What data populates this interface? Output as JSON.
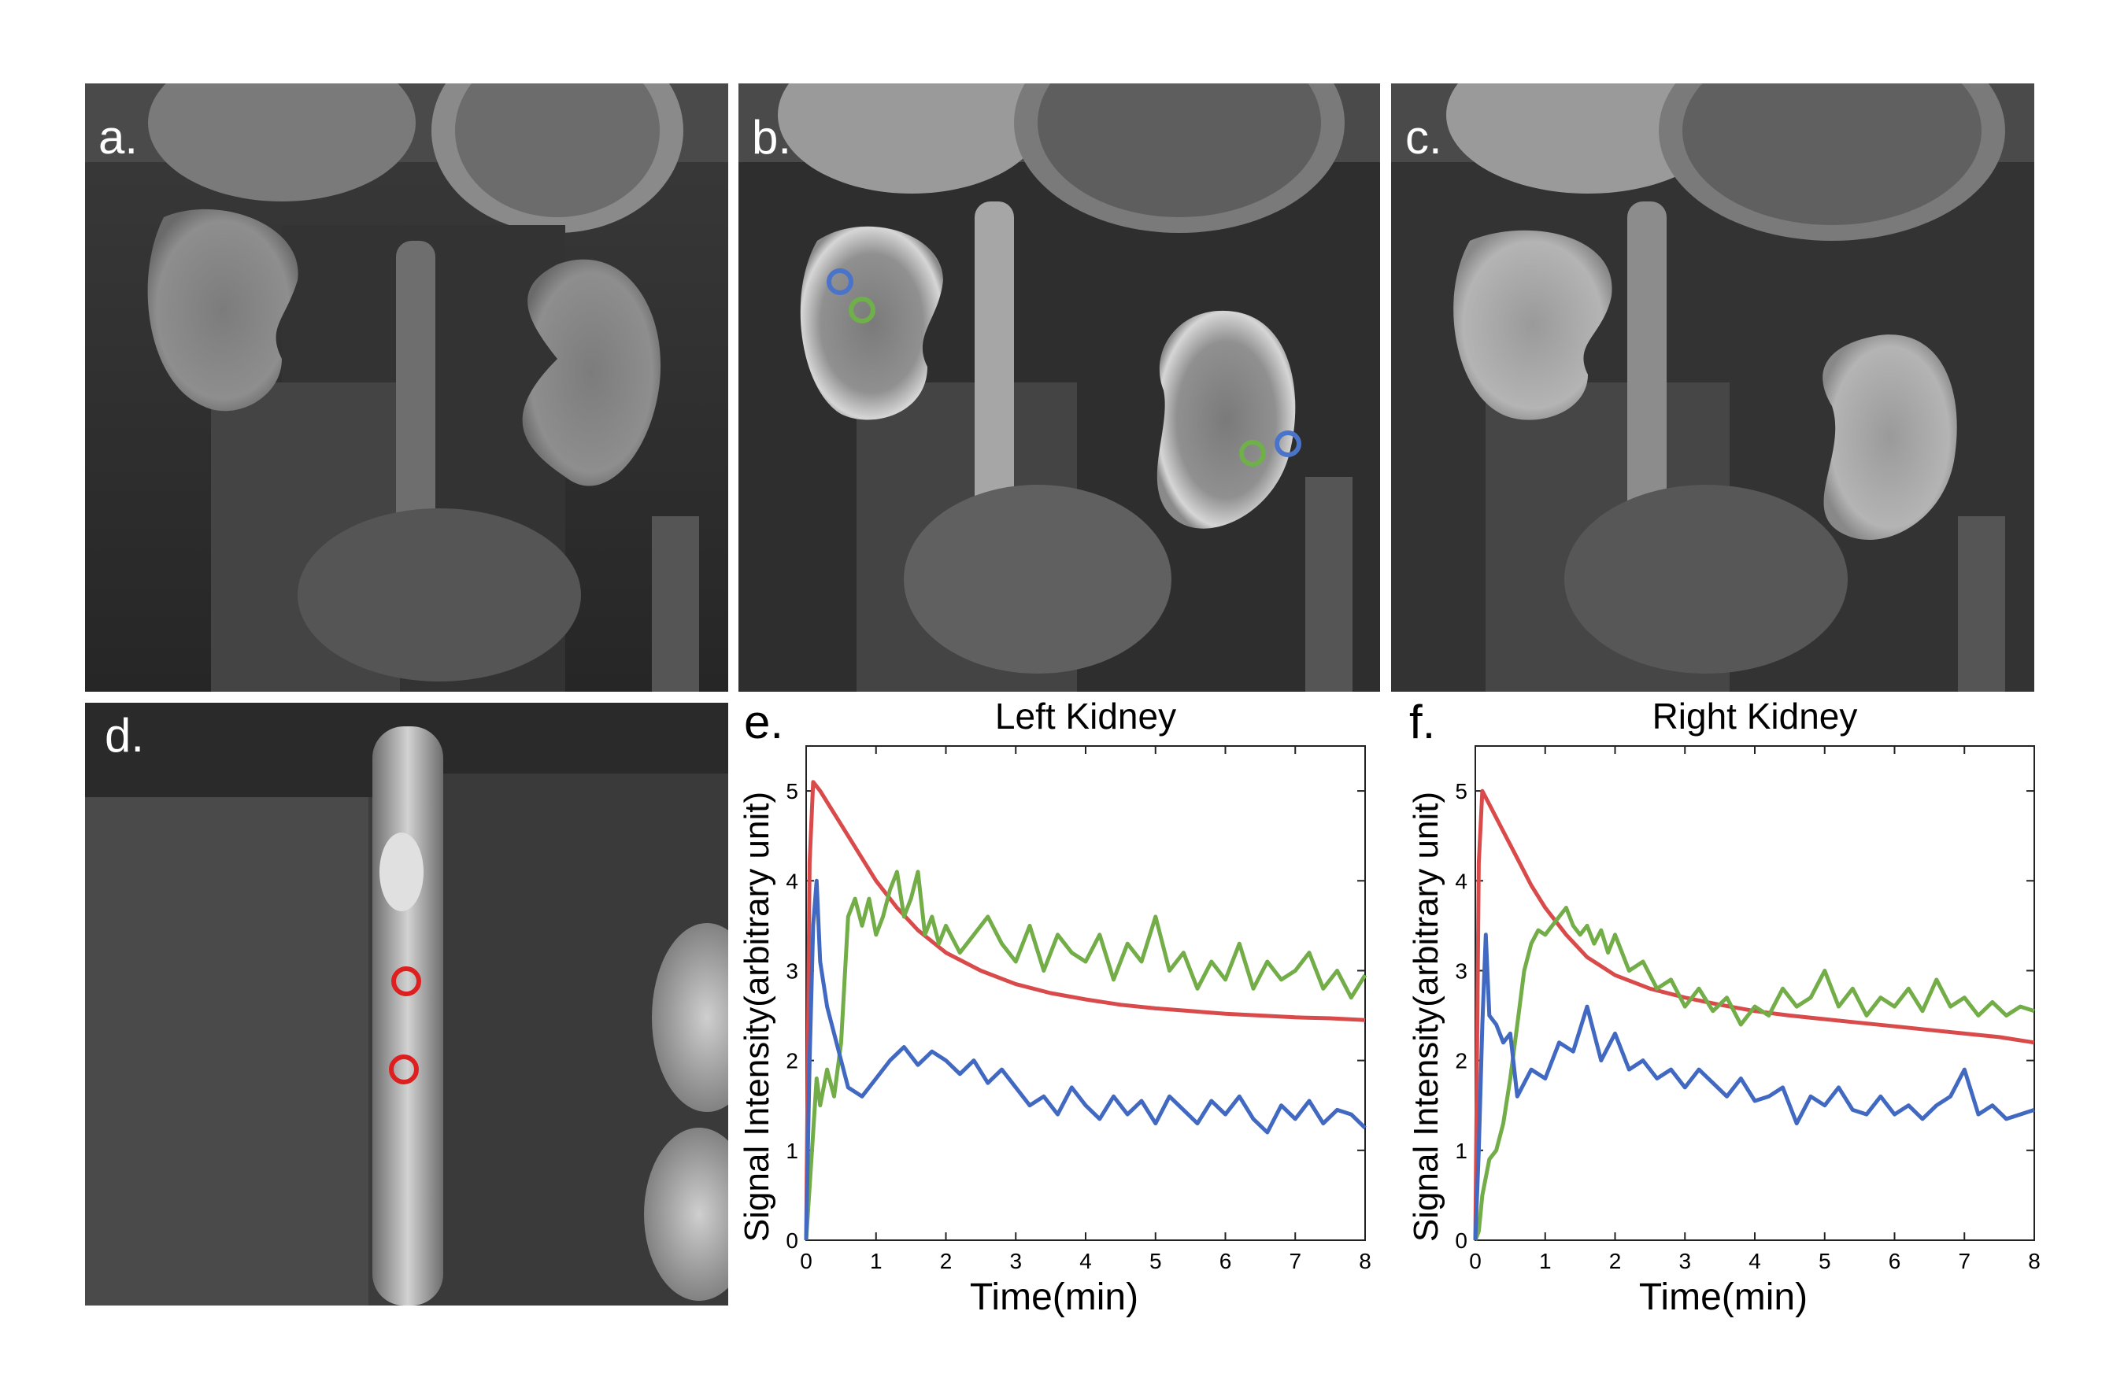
{
  "panels": {
    "a": {
      "label": "a."
    },
    "b": {
      "label": "b."
    },
    "c": {
      "label": "c."
    },
    "d": {
      "label": "d."
    },
    "e": {
      "label": "e."
    },
    "f": {
      "label": "f."
    }
  },
  "colors": {
    "aif": "#d94a4a",
    "medulla": "#72ad48",
    "cortex": "#4169c2",
    "axes": "#222222",
    "roi_blue": "#4a74c9",
    "roi_green": "#6fb04a",
    "roi_red": "#dd1f1f"
  },
  "chart_data": [
    {
      "type": "line",
      "title": "Left Kidney",
      "xlabel": "Time(min)",
      "ylabel": "Signal Intensity(arbitrary unit)",
      "xlim": [
        0,
        8
      ],
      "ylim": [
        0,
        5.5
      ],
      "xticks": [
        0,
        1,
        2,
        3,
        4,
        5,
        6,
        7,
        8
      ],
      "yticks": [
        0,
        1,
        2,
        3,
        4,
        5
      ],
      "grid": false,
      "series": [
        {
          "color": "#d94a4a",
          "x": [
            0,
            0.05,
            0.1,
            0.2,
            0.4,
            0.6,
            0.8,
            1.0,
            1.3,
            1.6,
            2.0,
            2.5,
            3.0,
            3.5,
            4.0,
            4.5,
            5.0,
            5.5,
            6.0,
            6.5,
            7.0,
            7.5,
            8.0
          ],
          "y": [
            0,
            4.2,
            5.1,
            5.0,
            4.75,
            4.5,
            4.25,
            4.0,
            3.7,
            3.45,
            3.2,
            3.0,
            2.85,
            2.75,
            2.68,
            2.62,
            2.58,
            2.55,
            2.52,
            2.5,
            2.48,
            2.47,
            2.45
          ]
        },
        {
          "color": "#72ad48",
          "x": [
            0,
            0.1,
            0.15,
            0.2,
            0.3,
            0.4,
            0.5,
            0.6,
            0.7,
            0.8,
            0.9,
            1.0,
            1.1,
            1.2,
            1.3,
            1.4,
            1.5,
            1.6,
            1.7,
            1.8,
            1.9,
            2.0,
            2.2,
            2.4,
            2.6,
            2.8,
            3.0,
            3.2,
            3.4,
            3.6,
            3.8,
            4.0,
            4.2,
            4.4,
            4.6,
            4.8,
            5.0,
            5.2,
            5.4,
            5.6,
            5.8,
            6.0,
            6.2,
            6.4,
            6.6,
            6.8,
            7.0,
            7.2,
            7.4,
            7.6,
            7.8,
            8.0
          ],
          "y": [
            0,
            1.2,
            1.8,
            1.5,
            1.9,
            1.6,
            2.2,
            3.6,
            3.8,
            3.5,
            3.8,
            3.4,
            3.6,
            3.9,
            4.1,
            3.6,
            3.8,
            4.1,
            3.4,
            3.6,
            3.3,
            3.5,
            3.2,
            3.4,
            3.6,
            3.3,
            3.1,
            3.5,
            3.0,
            3.4,
            3.2,
            3.1,
            3.4,
            2.9,
            3.3,
            3.1,
            3.6,
            3.0,
            3.2,
            2.8,
            3.1,
            2.9,
            3.3,
            2.8,
            3.1,
            2.9,
            3.0,
            3.2,
            2.8,
            3.0,
            2.7,
            2.95
          ]
        },
        {
          "color": "#4169c2",
          "x": [
            0,
            0.05,
            0.1,
            0.15,
            0.2,
            0.3,
            0.4,
            0.5,
            0.6,
            0.8,
            1.0,
            1.2,
            1.4,
            1.6,
            1.8,
            2.0,
            2.2,
            2.4,
            2.6,
            2.8,
            3.0,
            3.2,
            3.4,
            3.6,
            3.8,
            4.0,
            4.2,
            4.4,
            4.6,
            4.8,
            5.0,
            5.2,
            5.4,
            5.6,
            5.8,
            6.0,
            6.2,
            6.4,
            6.6,
            6.8,
            7.0,
            7.2,
            7.4,
            7.6,
            7.8,
            8.0
          ],
          "y": [
            0,
            2.0,
            3.5,
            4.0,
            3.1,
            2.6,
            2.3,
            2.0,
            1.7,
            1.6,
            1.8,
            2.0,
            2.15,
            1.95,
            2.1,
            2.0,
            1.85,
            2.0,
            1.75,
            1.9,
            1.7,
            1.5,
            1.6,
            1.4,
            1.7,
            1.5,
            1.35,
            1.6,
            1.4,
            1.55,
            1.3,
            1.6,
            1.45,
            1.3,
            1.55,
            1.4,
            1.6,
            1.35,
            1.2,
            1.5,
            1.35,
            1.55,
            1.3,
            1.45,
            1.4,
            1.25
          ]
        }
      ]
    },
    {
      "type": "line",
      "title": "Right Kidney",
      "xlabel": "Time(min)",
      "ylabel": "Signal Intensity(arbitrary unit)",
      "xlim": [
        0,
        8
      ],
      "ylim": [
        0,
        5.5
      ],
      "xticks": [
        0,
        1,
        2,
        3,
        4,
        5,
        6,
        7,
        8
      ],
      "yticks": [
        0,
        1,
        2,
        3,
        4,
        5
      ],
      "grid": false,
      "series": [
        {
          "color": "#d94a4a",
          "x": [
            0,
            0.05,
            0.1,
            0.2,
            0.4,
            0.6,
            0.8,
            1.0,
            1.3,
            1.6,
            2.0,
            2.5,
            3.0,
            3.5,
            4.0,
            4.5,
            5.0,
            5.5,
            6.0,
            6.5,
            7.0,
            7.5,
            8.0
          ],
          "y": [
            0,
            4.2,
            5.0,
            4.85,
            4.55,
            4.25,
            3.95,
            3.7,
            3.4,
            3.15,
            2.95,
            2.8,
            2.7,
            2.62,
            2.55,
            2.5,
            2.46,
            2.42,
            2.38,
            2.34,
            2.3,
            2.26,
            2.2
          ]
        },
        {
          "color": "#72ad48",
          "x": [
            0,
            0.05,
            0.1,
            0.2,
            0.3,
            0.4,
            0.5,
            0.6,
            0.7,
            0.8,
            0.9,
            1.0,
            1.1,
            1.2,
            1.3,
            1.4,
            1.5,
            1.6,
            1.7,
            1.8,
            1.9,
            2.0,
            2.2,
            2.4,
            2.6,
            2.8,
            3.0,
            3.2,
            3.4,
            3.6,
            3.8,
            4.0,
            4.2,
            4.4,
            4.6,
            4.8,
            5.0,
            5.2,
            5.4,
            5.6,
            5.8,
            6.0,
            6.2,
            6.4,
            6.6,
            6.8,
            7.0,
            7.2,
            7.4,
            7.6,
            7.8,
            8.0
          ],
          "y": [
            0,
            0.1,
            0.5,
            0.9,
            1.0,
            1.3,
            1.8,
            2.4,
            3.0,
            3.3,
            3.45,
            3.4,
            3.5,
            3.6,
            3.7,
            3.5,
            3.4,
            3.5,
            3.3,
            3.45,
            3.2,
            3.4,
            3.0,
            3.1,
            2.8,
            2.9,
            2.6,
            2.8,
            2.55,
            2.7,
            2.4,
            2.6,
            2.5,
            2.8,
            2.6,
            2.7,
            3.0,
            2.6,
            2.8,
            2.5,
            2.7,
            2.6,
            2.8,
            2.55,
            2.9,
            2.6,
            2.7,
            2.5,
            2.65,
            2.5,
            2.6,
            2.55
          ]
        },
        {
          "color": "#4169c2",
          "x": [
            0,
            0.05,
            0.1,
            0.15,
            0.2,
            0.3,
            0.4,
            0.5,
            0.6,
            0.8,
            1.0,
            1.2,
            1.4,
            1.6,
            1.8,
            2.0,
            2.2,
            2.4,
            2.6,
            2.8,
            3.0,
            3.2,
            3.4,
            3.6,
            3.8,
            4.0,
            4.2,
            4.4,
            4.6,
            4.8,
            5.0,
            5.2,
            5.4,
            5.6,
            5.8,
            6.0,
            6.2,
            6.4,
            6.6,
            6.8,
            7.0,
            7.2,
            7.4,
            7.6,
            7.8,
            8.0
          ],
          "y": [
            0,
            1.0,
            2.4,
            3.4,
            2.5,
            2.4,
            2.2,
            2.3,
            1.6,
            1.9,
            1.8,
            2.2,
            2.1,
            2.6,
            2.0,
            2.3,
            1.9,
            2.0,
            1.8,
            1.9,
            1.7,
            1.9,
            1.75,
            1.6,
            1.8,
            1.55,
            1.6,
            1.7,
            1.3,
            1.6,
            1.5,
            1.7,
            1.45,
            1.4,
            1.6,
            1.4,
            1.5,
            1.35,
            1.5,
            1.6,
            1.9,
            1.4,
            1.5,
            1.35,
            1.4,
            1.45
          ]
        }
      ]
    }
  ]
}
